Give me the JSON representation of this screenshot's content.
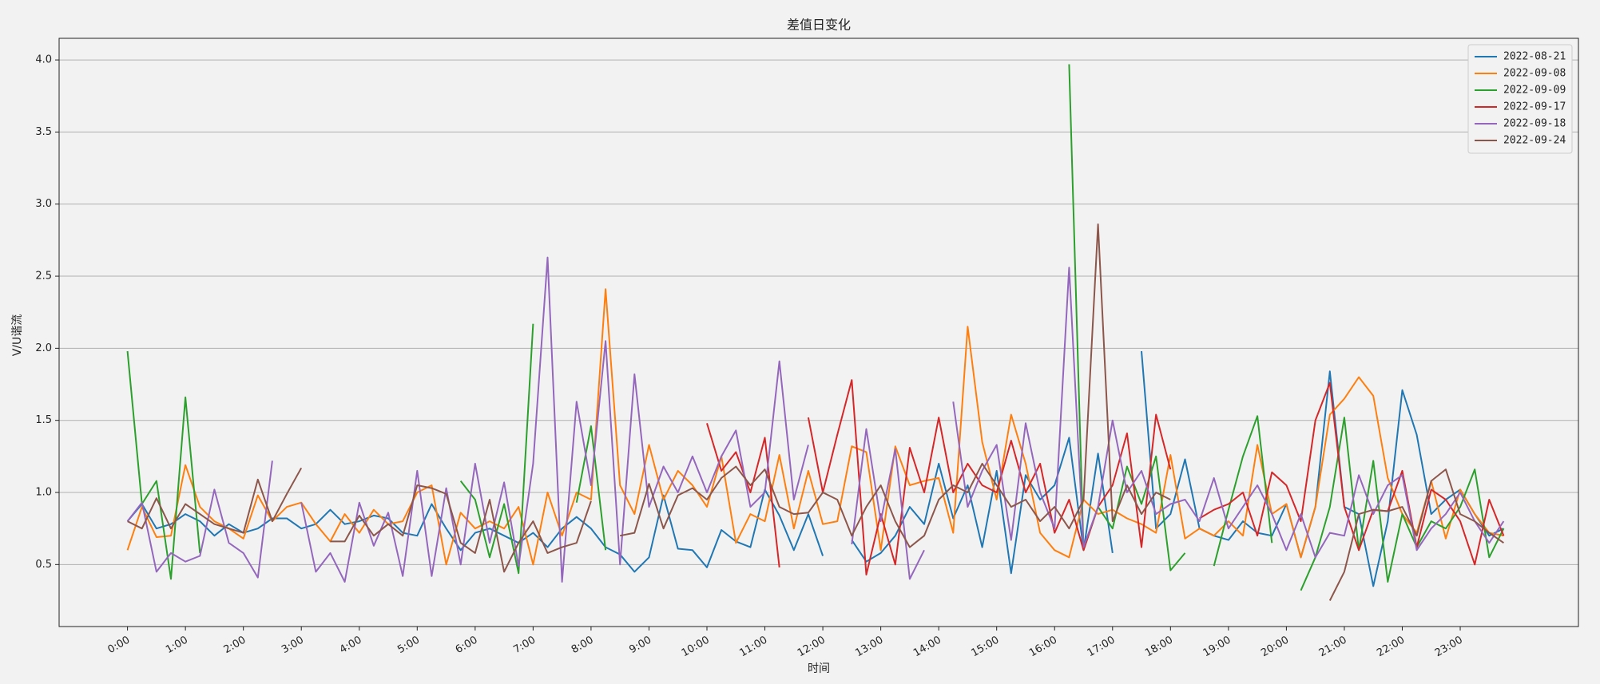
{
  "chart_data": {
    "type": "line",
    "title": "差值日变化",
    "x_label": "时间",
    "y_label": "V/U谐流",
    "x": [
      0,
      0.25,
      0.5,
      0.75,
      1,
      1.25,
      1.5,
      1.75,
      2,
      2.25,
      2.5,
      2.75,
      3,
      3.25,
      3.5,
      3.75,
      4,
      4.25,
      4.5,
      4.75,
      5,
      5.25,
      5.5,
      5.75,
      6,
      6.25,
      6.5,
      6.75,
      7,
      7.25,
      7.5,
      7.75,
      8,
      8.25,
      8.5,
      8.75,
      9,
      9.25,
      9.5,
      9.75,
      10,
      10.25,
      10.5,
      10.75,
      11,
      11.25,
      11.5,
      11.75,
      12,
      12.25,
      12.5,
      12.75,
      13,
      13.25,
      13.5,
      13.75,
      14,
      14.25,
      14.5,
      14.75,
      15,
      15.25,
      15.5,
      15.75,
      16,
      16.25,
      16.5,
      16.75,
      17,
      17.25,
      17.5,
      17.75,
      18,
      18.25,
      18.5,
      18.75,
      19,
      19.25,
      19.5,
      19.75,
      20,
      20.25,
      20.5,
      20.75,
      21,
      21.25,
      21.5,
      21.75,
      22,
      22.25,
      22.5,
      22.75,
      23,
      23.25,
      23.5,
      23.75
    ],
    "series": [
      {
        "name": "2022-08-21",
        "color": "#1f77b4",
        "values": [
          0.8,
          0.92,
          0.75,
          0.78,
          0.85,
          0.8,
          0.7,
          0.78,
          0.72,
          0.75,
          0.82,
          0.82,
          0.75,
          0.78,
          0.88,
          0.78,
          0.8,
          0.84,
          0.82,
          0.72,
          0.7,
          0.92,
          0.75,
          0.6,
          0.72,
          0.75,
          0.7,
          0.65,
          0.72,
          0.62,
          0.75,
          0.83,
          0.75,
          0.62,
          0.57,
          0.45,
          0.55,
          0.98,
          0.61,
          0.6,
          0.48,
          0.74,
          0.66,
          0.62,
          1.02,
          0.84,
          0.6,
          0.85,
          0.56,
          null,
          0.67,
          0.52,
          0.58,
          0.7,
          0.9,
          0.78,
          1.2,
          0.82,
          1.05,
          0.62,
          1.15,
          0.44,
          1.12,
          0.95,
          1.05,
          1.38,
          0.6,
          1.27,
          0.58,
          null,
          1.98,
          0.75,
          0.85,
          1.23,
          0.75,
          0.7,
          0.67,
          0.8,
          0.72,
          0.7,
          0.92,
          0.55,
          0.9,
          1.84,
          0.9,
          0.85,
          0.35,
          0.8,
          1.71,
          1.4,
          0.85,
          0.95,
          1.02,
          0.85,
          0.7,
          0.75
        ]
      },
      {
        "name": "2022-09-08",
        "color": "#ff7f0e",
        "values": [
          0.6,
          0.9,
          0.69,
          0.7,
          1.19,
          0.9,
          0.8,
          0.75,
          0.68,
          0.98,
          0.8,
          0.9,
          0.93,
          0.78,
          0.66,
          0.85,
          0.72,
          0.88,
          0.78,
          0.8,
          1.0,
          1.05,
          0.5,
          0.86,
          0.75,
          0.8,
          0.75,
          0.9,
          0.5,
          1.0,
          0.7,
          1.0,
          0.95,
          2.41,
          1.05,
          0.85,
          1.33,
          0.95,
          1.15,
          1.05,
          0.9,
          1.25,
          0.65,
          0.85,
          0.8,
          1.26,
          0.75,
          1.15,
          0.78,
          0.8,
          1.32,
          1.28,
          0.6,
          1.32,
          1.05,
          1.08,
          1.1,
          0.72,
          2.15,
          1.35,
          0.95,
          1.54,
          1.2,
          0.72,
          0.6,
          0.55,
          0.95,
          0.85,
          0.88,
          0.82,
          0.78,
          0.72,
          1.26,
          0.68,
          0.75,
          0.7,
          0.8,
          0.7,
          1.33,
          0.85,
          0.92,
          0.55,
          0.9,
          1.54,
          1.65,
          1.8,
          1.67,
          1.1,
          0.85,
          0.72,
          1.08,
          0.68,
          1.02,
          0.85,
          0.72,
          0.7
        ]
      },
      {
        "name": "2022-09-09",
        "color": "#2ca02c",
        "values": [
          1.98,
          0.92,
          1.08,
          0.4,
          1.66,
          0.58,
          null,
          null,
          null,
          null,
          null,
          null,
          null,
          null,
          null,
          null,
          null,
          null,
          null,
          null,
          null,
          null,
          null,
          1.08,
          0.95,
          0.55,
          0.92,
          0.44,
          2.17,
          null,
          null,
          0.93,
          1.46,
          0.6,
          null,
          null,
          null,
          null,
          null,
          null,
          null,
          null,
          null,
          null,
          null,
          null,
          null,
          null,
          null,
          null,
          null,
          null,
          null,
          null,
          null,
          null,
          null,
          null,
          null,
          null,
          null,
          null,
          null,
          null,
          null,
          3.97,
          0.6,
          0.9,
          0.75,
          1.18,
          0.92,
          1.25,
          0.46,
          0.58,
          null,
          0.49,
          0.88,
          1.25,
          1.53,
          0.65,
          null,
          0.32,
          0.55,
          0.9,
          1.52,
          0.6,
          1.22,
          0.38,
          0.85,
          0.62,
          0.8,
          0.75,
          0.9,
          1.16,
          0.55,
          0.75
        ]
      },
      {
        "name": "2022-09-17",
        "color": "#d62728",
        "values": [
          null,
          null,
          null,
          null,
          null,
          null,
          null,
          null,
          null,
          null,
          null,
          null,
          null,
          null,
          null,
          null,
          null,
          null,
          null,
          null,
          null,
          null,
          null,
          null,
          null,
          null,
          null,
          null,
          null,
          null,
          null,
          null,
          null,
          null,
          null,
          null,
          null,
          null,
          null,
          null,
          1.48,
          1.15,
          1.28,
          1.0,
          1.38,
          0.48,
          null,
          1.52,
          1.0,
          1.4,
          1.78,
          0.43,
          0.85,
          0.5,
          1.31,
          1.0,
          1.52,
          1.0,
          1.2,
          1.05,
          1.0,
          1.36,
          1.0,
          1.2,
          0.72,
          0.95,
          0.6,
          0.9,
          1.05,
          1.41,
          0.62,
          1.54,
          1.16,
          null,
          0.82,
          0.88,
          0.92,
          1.0,
          0.7,
          1.14,
          1.05,
          0.8,
          1.5,
          1.76,
          0.9,
          0.6,
          0.88,
          0.87,
          1.15,
          0.62,
          1.02,
          0.95,
          0.8,
          0.5,
          0.95,
          0.7
        ]
      },
      {
        "name": "2022-09-18",
        "color": "#9467bd",
        "values": [
          0.8,
          0.93,
          0.45,
          0.58,
          0.52,
          0.56,
          1.02,
          0.65,
          0.58,
          0.41,
          1.22,
          null,
          0.93,
          0.45,
          0.58,
          0.38,
          0.93,
          0.63,
          0.86,
          0.42,
          1.15,
          0.42,
          1.03,
          0.5,
          1.2,
          0.65,
          1.07,
          0.49,
          1.2,
          2.63,
          0.38,
          1.63,
          1.05,
          2.05,
          0.5,
          1.82,
          0.9,
          1.18,
          1.0,
          1.25,
          1.0,
          1.25,
          1.43,
          0.9,
          1.0,
          1.91,
          0.95,
          1.33,
          null,
          null,
          0.64,
          1.44,
          0.8,
          1.3,
          0.4,
          0.6,
          null,
          1.63,
          0.9,
          1.15,
          1.33,
          0.67,
          1.48,
          1.0,
          0.75,
          2.56,
          0.62,
          0.9,
          1.5,
          1.0,
          1.15,
          0.85,
          0.92,
          0.95,
          0.8,
          1.1,
          0.75,
          0.9,
          1.05,
          0.85,
          0.6,
          0.85,
          0.55,
          0.72,
          0.7,
          1.12,
          0.85,
          1.05,
          1.12,
          0.6,
          0.75,
          0.85,
          1.0,
          0.8,
          0.65,
          0.8
        ]
      },
      {
        "name": "2022-09-24",
        "color": "#8c564b",
        "values": [
          0.8,
          0.75,
          0.96,
          0.75,
          0.92,
          0.85,
          0.78,
          0.75,
          0.72,
          1.09,
          0.8,
          0.99,
          1.17,
          null,
          0.66,
          0.66,
          0.84,
          0.7,
          0.78,
          0.7,
          1.05,
          1.03,
          0.99,
          0.65,
          0.58,
          0.95,
          0.45,
          0.65,
          0.8,
          0.58,
          0.62,
          0.65,
          0.94,
          null,
          0.7,
          0.72,
          1.06,
          0.75,
          0.98,
          1.03,
          0.95,
          1.1,
          1.18,
          1.05,
          1.16,
          0.9,
          0.85,
          0.86,
          1.0,
          0.95,
          0.7,
          0.9,
          1.05,
          0.8,
          0.62,
          0.7,
          0.95,
          1.05,
          1.0,
          1.2,
          1.05,
          0.9,
          0.95,
          0.8,
          0.9,
          0.75,
          0.95,
          2.86,
          0.8,
          1.05,
          0.85,
          1.0,
          0.95,
          null,
          null,
          null,
          null,
          null,
          null,
          null,
          null,
          null,
          null,
          0.25,
          0.45,
          0.85,
          0.88,
          0.87,
          0.9,
          0.7,
          1.08,
          1.16,
          0.85,
          0.8,
          0.72,
          0.65
        ]
      }
    ],
    "xlim": [
      -1.18,
      25.04
    ],
    "xticks": [
      {
        "value": 0,
        "label": "0:00"
      },
      {
        "value": 1,
        "label": "1:00"
      },
      {
        "value": 2,
        "label": "2:00"
      },
      {
        "value": 3,
        "label": "3:00"
      },
      {
        "value": 4,
        "label": "4:00"
      },
      {
        "value": 5,
        "label": "5:00"
      },
      {
        "value": 6,
        "label": "6:00"
      },
      {
        "value": 7,
        "label": "7:00"
      },
      {
        "value": 8,
        "label": "8:00"
      },
      {
        "value": 9,
        "label": "9:00"
      },
      {
        "value": 10,
        "label": "10:00"
      },
      {
        "value": 11,
        "label": "11:00"
      },
      {
        "value": 12,
        "label": "12:00"
      },
      {
        "value": 13,
        "label": "13:00"
      },
      {
        "value": 14,
        "label": "14:00"
      },
      {
        "value": 15,
        "label": "15:00"
      },
      {
        "value": 16,
        "label": "16:00"
      },
      {
        "value": 17,
        "label": "17:00"
      },
      {
        "value": 18,
        "label": "18:00"
      },
      {
        "value": 19,
        "label": "19:00"
      },
      {
        "value": 20,
        "label": "20:00"
      },
      {
        "value": 21,
        "label": "21:00"
      },
      {
        "value": 22,
        "label": "22:00"
      },
      {
        "value": 23,
        "label": "23:00"
      }
    ],
    "ylim": [
      0.07,
      4.15
    ],
    "yticks": [
      0.5,
      {
        "value": 1.0,
        "label": "1.0"
      },
      1.5,
      {
        "value": 2.0,
        "label": "2.0"
      },
      2.5,
      {
        "value": 3.0,
        "label": "3.0"
      },
      3.5,
      {
        "value": 4.0,
        "label": "4.0"
      }
    ],
    "grid": "y",
    "legend": "upper right"
  }
}
